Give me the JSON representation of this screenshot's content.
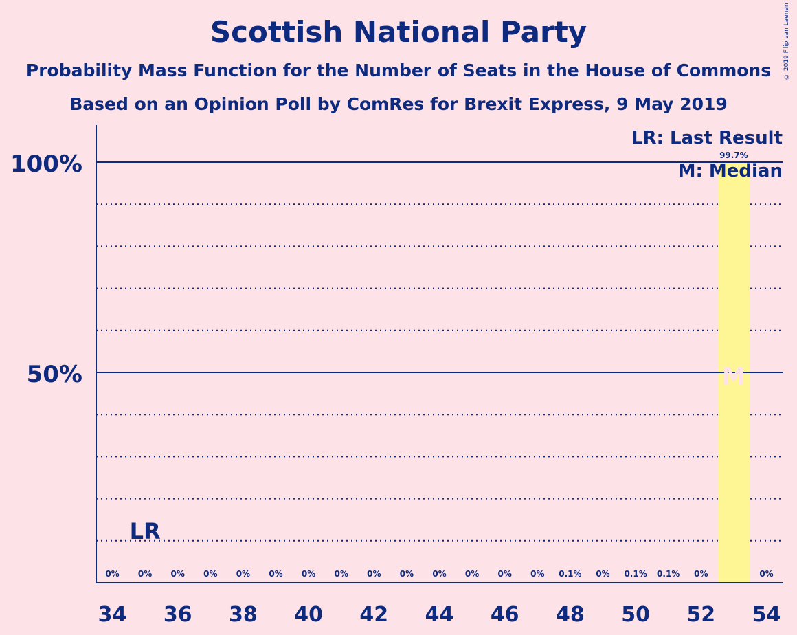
{
  "title": "Scottish National Party",
  "subtitle_line1": "Probability Mass Function for the Number of Seats in the House of Commons",
  "subtitle_line2": "Based on an Opinion Poll by ComRes for Brexit Express, 9 May 2019",
  "copyright": "© 2019 Filip van Laenen",
  "legend": {
    "last_result": "LR: Last Result",
    "median": "M: Median"
  },
  "markers": {
    "last_result_label": "LR",
    "last_result_seat": 35,
    "median_label": "M",
    "median_seat": 53
  },
  "colors": {
    "background": "#fde3e7",
    "text": "#0d2a7f",
    "bar": "#fef595",
    "median_text": "#fde3e7"
  },
  "chart_data": {
    "type": "bar",
    "x": [
      34,
      35,
      36,
      37,
      38,
      39,
      40,
      41,
      42,
      43,
      44,
      45,
      46,
      47,
      48,
      49,
      50,
      51,
      52,
      53,
      54
    ],
    "values": [
      0,
      0,
      0,
      0,
      0,
      0,
      0,
      0,
      0,
      0,
      0,
      0,
      0,
      0,
      0.1,
      0,
      0.1,
      0.1,
      0,
      99.7,
      0
    ],
    "value_labels": [
      "0%",
      "0%",
      "0%",
      "0%",
      "0%",
      "0%",
      "0%",
      "0%",
      "0%",
      "0%",
      "0%",
      "0%",
      "0%",
      "0%",
      "0.1%",
      "0%",
      "0.1%",
      "0.1%",
      "0%",
      "99.7%",
      "0%"
    ],
    "x_tick_labels": [
      "34",
      "36",
      "38",
      "40",
      "42",
      "44",
      "46",
      "48",
      "50",
      "52",
      "54"
    ],
    "y_tick_labels": [
      "100%",
      "50%"
    ],
    "y_major_ticks": [
      100,
      50
    ],
    "y_minor_gridlines": [
      10,
      20,
      30,
      40,
      60,
      70,
      80,
      90
    ],
    "ylim": [
      0,
      109
    ]
  }
}
